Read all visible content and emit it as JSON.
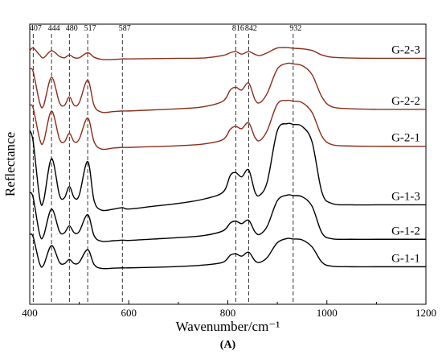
{
  "chart_data": {
    "type": "line",
    "title": "",
    "panel_label": "(A)",
    "xlabel": "Wavenumber/cm⁻¹",
    "ylabel": "Reflectance",
    "xlim": [
      400,
      1200
    ],
    "x_ticks": [
      "400",
      "600",
      "800",
      "1000",
      "1200"
    ],
    "y_ticks_shown": false,
    "grid": false,
    "legend": "none",
    "colors": {
      "G-2": "#8b2e1a",
      "G-1": "#000000"
    },
    "reference_lines": [
      {
        "x": 407,
        "label": "407"
      },
      {
        "x": 444,
        "label": "444"
      },
      {
        "x": 480,
        "label": "480"
      },
      {
        "x": 517,
        "label": "517"
      },
      {
        "x": 587,
        "label": "587"
      },
      {
        "x": 816,
        "label": "816"
      },
      {
        "x": 842,
        "label": "842"
      },
      {
        "x": 932,
        "label": "932"
      }
    ],
    "x": [
      400,
      407,
      420,
      428,
      444,
      460,
      470,
      480,
      490,
      500,
      517,
      530,
      545,
      570,
      587,
      600,
      650,
      700,
      750,
      790,
      805,
      816,
      828,
      842,
      855,
      865,
      880,
      900,
      920,
      932,
      950,
      970,
      990,
      1010,
      1050,
      1100,
      1150,
      1200
    ],
    "series": [
      {
        "name": "G-2-3",
        "group": "G-2",
        "values": [
          0.905,
          0.915,
          0.89,
          0.88,
          0.905,
          0.885,
          0.88,
          0.89,
          0.88,
          0.88,
          0.898,
          0.882,
          0.874,
          0.874,
          0.876,
          0.876,
          0.877,
          0.878,
          0.879,
          0.888,
          0.898,
          0.902,
          0.893,
          0.902,
          0.892,
          0.888,
          0.898,
          0.915,
          0.916,
          0.914,
          0.912,
          0.906,
          0.89,
          0.882,
          0.879,
          0.878,
          0.878,
          0.878
        ]
      },
      {
        "name": "G-2-2",
        "group": "G-2",
        "values": [
          0.84,
          0.83,
          0.72,
          0.71,
          0.81,
          0.72,
          0.71,
          0.74,
          0.71,
          0.72,
          0.8,
          0.71,
          0.686,
          0.688,
          0.69,
          0.69,
          0.694,
          0.698,
          0.705,
          0.725,
          0.765,
          0.775,
          0.765,
          0.79,
          0.73,
          0.72,
          0.755,
          0.84,
          0.86,
          0.858,
          0.852,
          0.82,
          0.74,
          0.705,
          0.698,
          0.696,
          0.696,
          0.696
        ]
      },
      {
        "name": "G-2-1",
        "group": "G-2",
        "values": [
          0.71,
          0.7,
          0.59,
          0.58,
          0.69,
          0.59,
          0.58,
          0.61,
          0.58,
          0.59,
          0.665,
          0.58,
          0.554,
          0.558,
          0.56,
          0.56,
          0.563,
          0.566,
          0.572,
          0.588,
          0.625,
          0.635,
          0.627,
          0.648,
          0.595,
          0.585,
          0.622,
          0.715,
          0.728,
          0.725,
          0.72,
          0.685,
          0.6,
          0.57,
          0.565,
          0.564,
          0.564,
          0.564
        ]
      },
      {
        "name": "G-1-3",
        "group": "G-1",
        "values": [
          0.62,
          0.58,
          0.38,
          0.37,
          0.52,
          0.39,
          0.38,
          0.42,
          0.38,
          0.39,
          0.51,
          0.37,
          0.336,
          0.34,
          0.345,
          0.34,
          0.35,
          0.36,
          0.375,
          0.4,
          0.46,
          0.47,
          0.455,
          0.48,
          0.4,
          0.39,
          0.44,
          0.62,
          0.645,
          0.642,
          0.635,
          0.58,
          0.4,
          0.36,
          0.355,
          0.355,
          0.355,
          0.355
        ]
      },
      {
        "name": "G-1-2",
        "group": "G-1",
        "values": [
          0.4,
          0.38,
          0.25,
          0.245,
          0.34,
          0.26,
          0.255,
          0.28,
          0.255,
          0.26,
          0.32,
          0.245,
          0.225,
          0.227,
          0.229,
          0.228,
          0.233,
          0.238,
          0.245,
          0.262,
          0.29,
          0.297,
          0.288,
          0.3,
          0.258,
          0.25,
          0.28,
          0.37,
          0.39,
          0.388,
          0.384,
          0.35,
          0.255,
          0.234,
          0.232,
          0.232,
          0.232,
          0.232
        ]
      },
      {
        "name": "G-1-1",
        "group": "G-1",
        "values": [
          0.25,
          0.24,
          0.145,
          0.14,
          0.21,
          0.15,
          0.145,
          0.16,
          0.145,
          0.15,
          0.195,
          0.142,
          0.128,
          0.129,
          0.13,
          0.13,
          0.132,
          0.135,
          0.14,
          0.15,
          0.175,
          0.18,
          0.172,
          0.186,
          0.155,
          0.15,
          0.168,
          0.22,
          0.235,
          0.233,
          0.23,
          0.205,
          0.15,
          0.136,
          0.134,
          0.134,
          0.134,
          0.134
        ]
      }
    ]
  }
}
